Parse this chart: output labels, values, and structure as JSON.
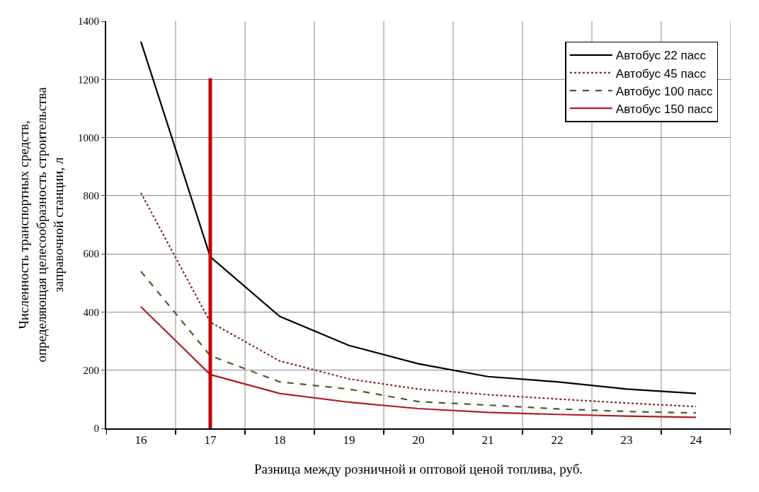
{
  "chart_data": {
    "type": "line",
    "xlabel": "Разница между розничной и оптовой ценой топлива, руб.",
    "ylabel": "Численность транспортных средств,\nопределяющая целесообразность строительства\nзаправочной станции, л",
    "categories": [
      "16",
      "17",
      "18",
      "19",
      "20",
      "21",
      "22",
      "23",
      "24"
    ],
    "series": [
      {
        "name": "Автобус 22 пасс",
        "color": "#000000",
        "line_style": "solid",
        "values": [
          1330,
          590,
          385,
          285,
          222,
          178,
          160,
          135,
          120
        ]
      },
      {
        "name": "Автобус 45 пасс",
        "color": "#7b2c2c",
        "line_style": "dotted",
        "values": [
          810,
          365,
          232,
          170,
          135,
          116,
          101,
          87,
          75
        ]
      },
      {
        "name": "Автобус 100 пасс",
        "color": "#4a5e1e",
        "line_style": "dashed",
        "values": [
          540,
          250,
          160,
          135,
          92,
          80,
          67,
          58,
          53
        ]
      },
      {
        "name": "Автобус 150 пасс",
        "color": "#b01c22",
        "line_style": "solid",
        "values": [
          418,
          185,
          120,
          90,
          68,
          55,
          48,
          42,
          38
        ]
      }
    ],
    "ylim": [
      0,
      1400
    ],
    "yticks": [
      0,
      200,
      400,
      600,
      800,
      1000,
      1200,
      1400
    ],
    "ref_lines": [
      {
        "axis": "x",
        "value": "17",
        "color": "#c00000"
      }
    ],
    "grid": true,
    "legend": "top right",
    "marker": "none"
  }
}
